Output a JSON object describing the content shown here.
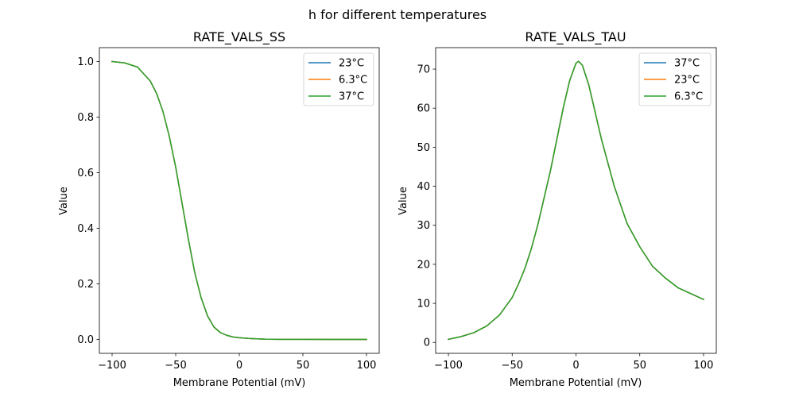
{
  "figure": {
    "suptitle": "h for different temperatures"
  },
  "chart_data": [
    {
      "type": "line",
      "title": "RATE_VALS_SS",
      "xlabel": "Membrane Potential (mV)",
      "ylabel": "Value",
      "xlim": [
        -110,
        110
      ],
      "ylim": [
        -0.05,
        1.05
      ],
      "xticks": [
        -100,
        -50,
        0,
        50,
        100
      ],
      "xtick_labels": [
        "−100",
        "−50",
        "0",
        "50",
        "100"
      ],
      "yticks": [
        0.0,
        0.2,
        0.4,
        0.6,
        0.8,
        1.0
      ],
      "ytick_labels": [
        "0.0",
        "0.2",
        "0.4",
        "0.6",
        "0.8",
        "1.0"
      ],
      "legend_position": "top-right",
      "grid": false,
      "x": [
        -100,
        -90,
        -80,
        -70,
        -65,
        -60,
        -55,
        -50,
        -45,
        -40,
        -35,
        -30,
        -25,
        -20,
        -15,
        -10,
        -5,
        0,
        10,
        20,
        30,
        50,
        75,
        100
      ],
      "series": [
        {
          "name": "23°C",
          "color": "#1f77b4",
          "values": [
            1.0,
            0.995,
            0.98,
            0.93,
            0.885,
            0.82,
            0.73,
            0.62,
            0.49,
            0.36,
            0.24,
            0.15,
            0.085,
            0.045,
            0.025,
            0.015,
            0.009,
            0.006,
            0.003,
            0.001,
            0.0005,
            0.0002,
            0.0001,
            0.0
          ]
        },
        {
          "name": "6.3°C",
          "color": "#ff7f0e",
          "values": [
            1.0,
            0.995,
            0.98,
            0.93,
            0.885,
            0.82,
            0.73,
            0.62,
            0.49,
            0.36,
            0.24,
            0.15,
            0.085,
            0.045,
            0.025,
            0.015,
            0.009,
            0.006,
            0.003,
            0.001,
            0.0005,
            0.0002,
            0.0001,
            0.0
          ]
        },
        {
          "name": "37°C",
          "color": "#2ca02c",
          "values": [
            1.0,
            0.995,
            0.98,
            0.93,
            0.885,
            0.82,
            0.73,
            0.62,
            0.49,
            0.36,
            0.24,
            0.15,
            0.085,
            0.045,
            0.025,
            0.015,
            0.009,
            0.006,
            0.003,
            0.001,
            0.0005,
            0.0002,
            0.0001,
            0.0
          ]
        }
      ]
    },
    {
      "type": "line",
      "title": "RATE_VALS_TAU",
      "xlabel": "Membrane Potential (mV)",
      "ylabel": "Value",
      "xlim": [
        -110,
        110
      ],
      "ylim": [
        -2.8,
        75.5
      ],
      "xticks": [
        -100,
        -50,
        0,
        50,
        100
      ],
      "xtick_labels": [
        "−100",
        "−50",
        "0",
        "50",
        "100"
      ],
      "yticks": [
        0,
        10,
        20,
        30,
        40,
        50,
        60,
        70
      ],
      "ytick_labels": [
        "0",
        "10",
        "20",
        "30",
        "40",
        "50",
        "60",
        "70"
      ],
      "legend_position": "top-right",
      "grid": false,
      "x": [
        -100,
        -90,
        -80,
        -70,
        -60,
        -50,
        -45,
        -40,
        -35,
        -30,
        -25,
        -20,
        -15,
        -10,
        -5,
        0,
        2,
        5,
        10,
        15,
        20,
        25,
        30,
        40,
        50,
        60,
        70,
        80,
        90,
        100
      ],
      "series": [
        {
          "name": "37°C",
          "color": "#1f77b4",
          "values": [
            0.8,
            1.5,
            2.5,
            4.2,
            7.0,
            11.5,
            15.0,
            19.0,
            24.0,
            30.0,
            37.0,
            44.0,
            52.0,
            60.0,
            67.0,
            71.5,
            72.0,
            71.0,
            66.0,
            59.0,
            52.0,
            46.0,
            40.0,
            30.5,
            24.5,
            19.5,
            16.5,
            14.0,
            12.5,
            11.0
          ]
        },
        {
          "name": "23°C",
          "color": "#ff7f0e",
          "values": [
            0.8,
            1.5,
            2.5,
            4.2,
            7.0,
            11.5,
            15.0,
            19.0,
            24.0,
            30.0,
            37.0,
            44.0,
            52.0,
            60.0,
            67.0,
            71.5,
            72.0,
            71.0,
            66.0,
            59.0,
            52.0,
            46.0,
            40.0,
            30.5,
            24.5,
            19.5,
            16.5,
            14.0,
            12.5,
            11.0
          ]
        },
        {
          "name": "6.3°C",
          "color": "#2ca02c",
          "values": [
            0.8,
            1.5,
            2.5,
            4.2,
            7.0,
            11.5,
            15.0,
            19.0,
            24.0,
            30.0,
            37.0,
            44.0,
            52.0,
            60.0,
            67.0,
            71.5,
            72.0,
            71.0,
            66.0,
            59.0,
            52.0,
            46.0,
            40.0,
            30.5,
            24.5,
            19.5,
            16.5,
            14.0,
            12.5,
            11.0
          ]
        }
      ]
    }
  ]
}
